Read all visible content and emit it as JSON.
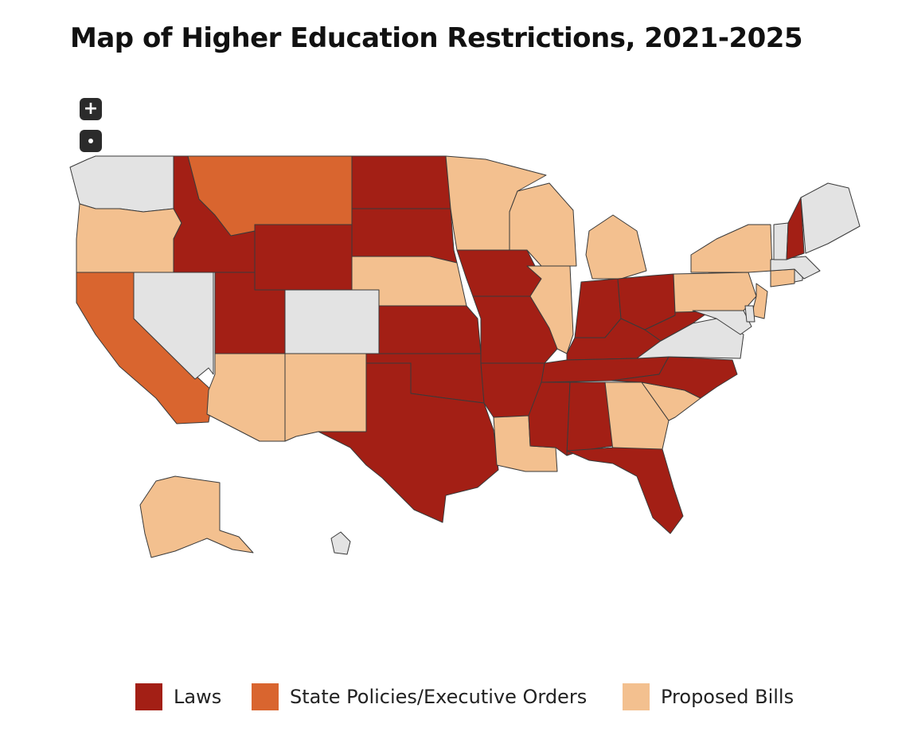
{
  "title": "Map of Higher Education Restrictions, 2021-2025",
  "controls": {
    "zoom_in_icon": "plus-icon",
    "reset_icon": "dot-icon"
  },
  "colors": {
    "laws": "#a31f15",
    "policies": "#d9652f",
    "proposed": "#f3c08f",
    "none": "#e3e3e3",
    "border": "#3a3a3a"
  },
  "legend": [
    {
      "label": "Laws",
      "color": "#a31f15",
      "category": "laws"
    },
    {
      "label": "State Policies/Executive Orders",
      "color": "#d9652f",
      "category": "policies"
    },
    {
      "label": "Proposed Bills",
      "color": "#f3c08f",
      "category": "proposed"
    }
  ],
  "states": {
    "WA": "none",
    "OR": "proposed",
    "CA": "policies",
    "NV": "none",
    "ID": "laws",
    "MT": "policies",
    "WY": "laws",
    "UT": "laws",
    "CO": "none",
    "AZ": "proposed",
    "NM": "proposed",
    "ND": "laws",
    "SD": "laws",
    "NE": "proposed",
    "KS": "laws",
    "OK": "laws",
    "TX": "laws",
    "MN": "proposed",
    "IA": "laws",
    "MO": "laws",
    "AR": "laws",
    "LA": "proposed",
    "WI": "proposed",
    "IL": "proposed",
    "MI": "proposed",
    "IN": "laws",
    "OH": "laws",
    "KY": "laws",
    "TN": "laws",
    "MS": "laws",
    "AL": "laws",
    "GA": "proposed",
    "FL": "laws",
    "SC": "proposed",
    "NC": "laws",
    "VA": "none",
    "WV": "laws",
    "PA": "proposed",
    "NY": "proposed",
    "NJ": "proposed",
    "DE": "none",
    "MD": "none",
    "CT": "proposed",
    "RI": "none",
    "MA": "none",
    "VT": "none",
    "NH": "laws",
    "ME": "none",
    "AK": "proposed",
    "HI": "none"
  }
}
